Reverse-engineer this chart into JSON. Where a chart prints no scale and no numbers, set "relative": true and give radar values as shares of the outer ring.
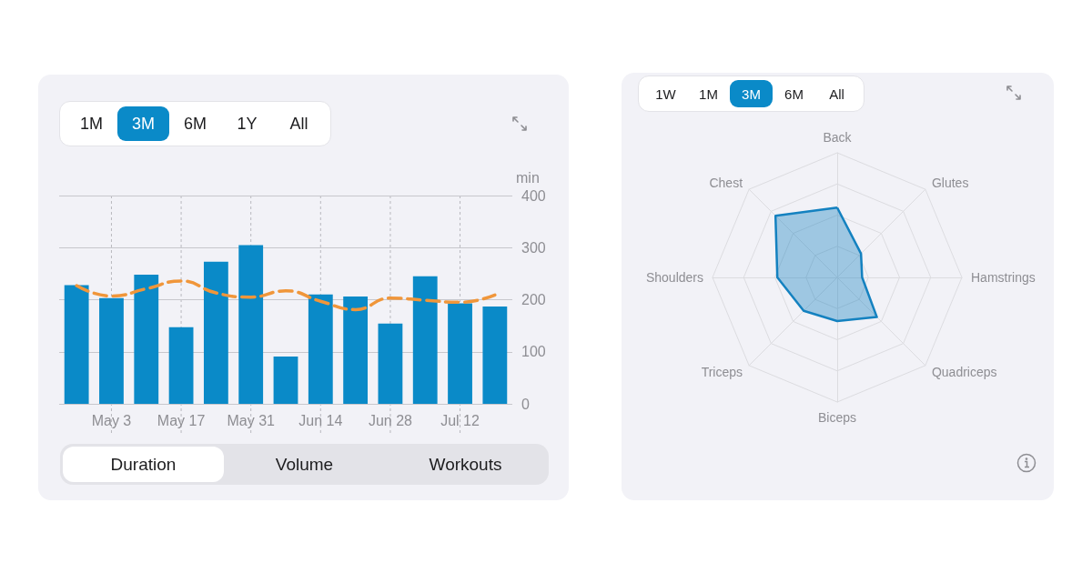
{
  "chart_data": [
    {
      "type": "bar",
      "categories": [
        null,
        "May 3",
        null,
        "May 17",
        null,
        "May 31",
        null,
        "Jun 14",
        null,
        "Jun 28",
        null,
        "Jul 12",
        null
      ],
      "ylabel": "min",
      "ylim": [
        0,
        400
      ],
      "yticks": [
        0,
        100,
        200,
        300,
        400
      ],
      "grid": true,
      "series": [
        {
          "type": "bar",
          "color": "#0a8ac8",
          "values": [
            228,
            203,
            248,
            147,
            273,
            305,
            91,
            210,
            206,
            154,
            245,
            193,
            187
          ]
        },
        {
          "type": "line",
          "color": "#f0963a",
          "line_style": "dashed",
          "marker": "none",
          "values": [
            227,
            207,
            221,
            236,
            213,
            205,
            217,
            197,
            181,
            203,
            199,
            195,
            209
          ]
        }
      ],
      "annotations": [
        "1M",
        "3M",
        "6M",
        "1Y",
        "All",
        "Duration",
        "Volume",
        "Workouts"
      ]
    },
    {
      "type": "radar",
      "relative": true,
      "categories": [
        "Back",
        "Glutes",
        "Hamstrings",
        "Quadriceps",
        "Biceps",
        "Triceps",
        "Shoulders",
        "Chest"
      ],
      "series": [
        {
          "color": "#1482c0",
          "values": [
            0.56,
            0.27,
            0.2,
            0.45,
            0.35,
            0.38,
            0.48,
            0.7
          ]
        }
      ],
      "annotations": [
        "1W",
        "1M",
        "3M",
        "6M",
        "All"
      ]
    }
  ]
}
